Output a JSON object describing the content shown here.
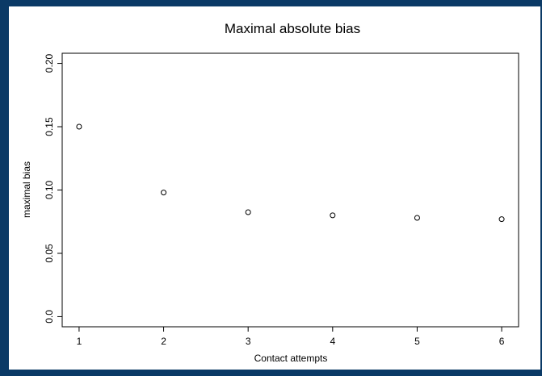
{
  "chart_data": {
    "type": "scatter",
    "title": "Maximal absolute bias",
    "x_label": "Contact attempts",
    "y_label": "maximal bias",
    "x": [
      1,
      2,
      3,
      4,
      5,
      6
    ],
    "series": [
      {
        "values": [
          0.15,
          0.098,
          0.0825,
          0.08,
          0.078,
          0.077
        ],
        "color": "#000000"
      }
    ],
    "xlim": [
      0.8,
      6.2
    ],
    "xticks": [
      1,
      2,
      3,
      4,
      5,
      6
    ],
    "ylim": [
      -0.008,
      0.208
    ],
    "yticks": [
      {
        "value": 0,
        "label": "0.0"
      },
      0.05,
      {
        "value": 0.1,
        "label": "0.10"
      },
      0.15,
      {
        "value": 0.2,
        "label": "0.20"
      }
    ]
  }
}
